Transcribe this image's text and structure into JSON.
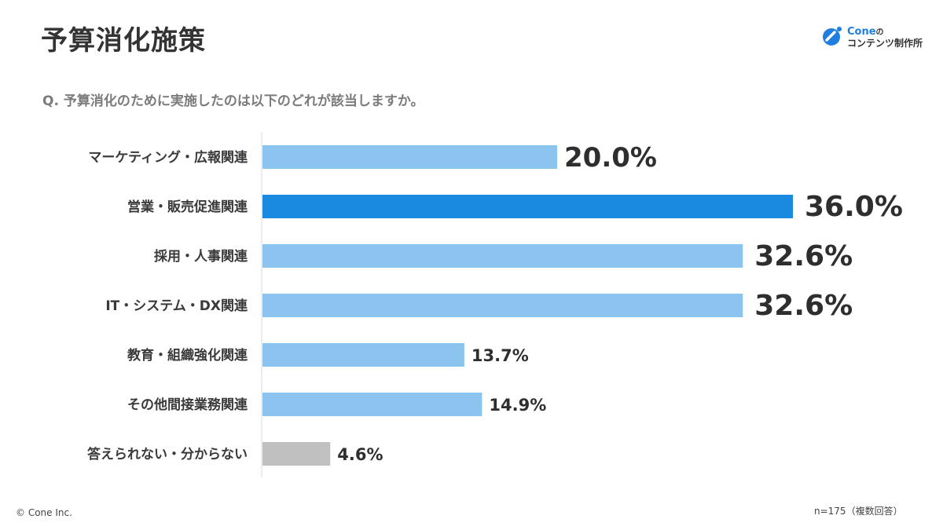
{
  "header": {
    "title": "予算消化施策",
    "question": "Q.  予算消化のために実施したのは以下のどれが該当しますか。"
  },
  "brand": {
    "name": "Cone",
    "name_suffix": "の",
    "sub": "コンテンツ制作所",
    "color": "#1f7fe0"
  },
  "footer": {
    "copyright": "© Cone Inc.",
    "note": "n=175（複数回答）"
  },
  "chart_data": {
    "type": "bar",
    "orientation": "horizontal",
    "categories": [
      "マーケティング・広報関連",
      "営業・販売促進関連",
      "採用・人事関連",
      "IT・システム・DX関連",
      "教育・組織強化関連",
      "その他間接業務関連",
      "答えられない・分からない"
    ],
    "values": [
      20.0,
      36.0,
      32.6,
      32.6,
      13.7,
      14.9,
      4.6
    ],
    "value_labels": [
      "20.0%",
      "36.0%",
      "32.6%",
      "32.6%",
      "13.7%",
      "14.9%",
      "4.6%"
    ],
    "unit": "%",
    "xlim": [
      0,
      36
    ],
    "colors": {
      "default": "#8cc4f0",
      "highlight": "#1a8ae0",
      "other": "#c0c0c0",
      "axis": "#d9d9d9"
    },
    "bar_colors": [
      "default",
      "highlight",
      "default",
      "default",
      "default",
      "default",
      "other"
    ],
    "grid": false,
    "legend": "none"
  }
}
